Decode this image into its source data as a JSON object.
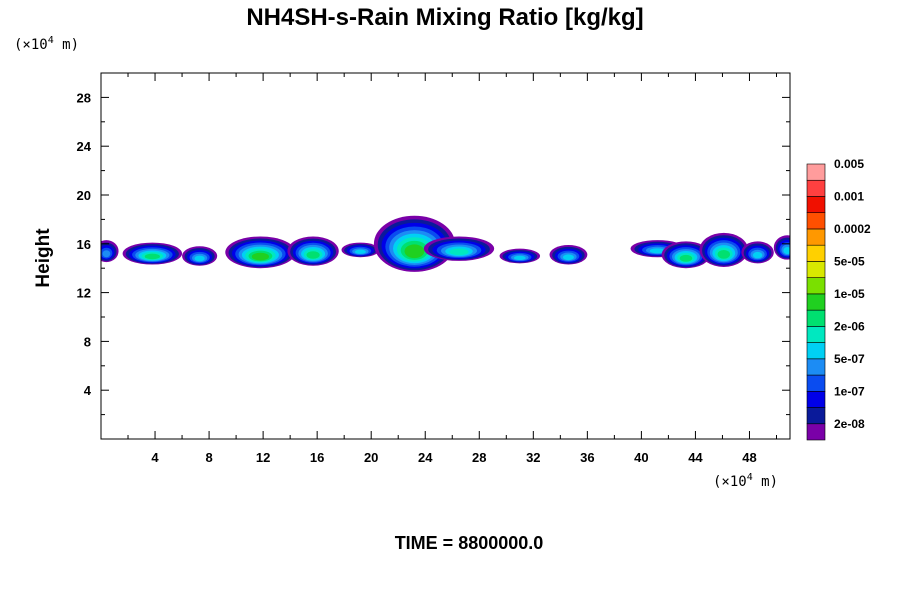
{
  "chart_data": {
    "type": "heatmap",
    "title": "NH4SH-s-Rain Mixing Ratio [kg/kg]",
    "ylabel": "Height",
    "xunit": {
      "prefix": "(×10",
      "exp": "4",
      "suffix": " m)"
    },
    "yunit": {
      "prefix": "(×10",
      "exp": "4",
      "suffix": " m)"
    },
    "xlim": [
      0,
      51
    ],
    "ylim": [
      0,
      30
    ],
    "xticks": [
      4,
      8,
      12,
      16,
      20,
      24,
      28,
      32,
      36,
      40,
      44,
      48
    ],
    "yticks": [
      4,
      8,
      12,
      16,
      20,
      24,
      28
    ],
    "colorbar": {
      "colors": [
        "#7a00a8",
        "#0a1a9a",
        "#0000e8",
        "#0a4cf0",
        "#1c8cf4",
        "#00d0f4",
        "#00e8c0",
        "#00e070",
        "#20d020",
        "#7ae000",
        "#d8e800",
        "#ffd000",
        "#ff9800",
        "#ff5000",
        "#f01000",
        "#ff4040",
        "#ff9c9c"
      ],
      "labels": [
        "2e-08",
        "1e-07",
        "5e-07",
        "2e-06",
        "1e-05",
        "5e-05",
        "0.0002",
        "0.001",
        "0.005"
      ]
    },
    "cells": [
      {
        "x": 0.4,
        "y": 15.4,
        "rx": 0.9,
        "ry": 0.9,
        "peak": 4
      },
      {
        "x": 3.8,
        "y": 15.2,
        "rx": 2.2,
        "ry": 0.9,
        "peak": 7
      },
      {
        "x": 7.3,
        "y": 15.0,
        "rx": 1.3,
        "ry": 0.8,
        "peak": 5
      },
      {
        "x": 11.8,
        "y": 15.3,
        "rx": 2.6,
        "ry": 1.3,
        "peak": 8
      },
      {
        "x": 15.7,
        "y": 15.4,
        "rx": 1.9,
        "ry": 1.2,
        "peak": 7
      },
      {
        "x": 19.2,
        "y": 15.5,
        "rx": 1.4,
        "ry": 0.6,
        "peak": 5
      },
      {
        "x": 23.2,
        "y": 16.0,
        "rx": 3.0,
        "ry": 2.3,
        "peak": 8
      },
      {
        "x": 26.5,
        "y": 15.6,
        "rx": 2.6,
        "ry": 1.0,
        "peak": 6
      },
      {
        "x": 31.0,
        "y": 15.0,
        "rx": 1.5,
        "ry": 0.6,
        "peak": 5
      },
      {
        "x": 34.6,
        "y": 15.1,
        "rx": 1.4,
        "ry": 0.8,
        "peak": 5
      },
      {
        "x": 41.2,
        "y": 15.6,
        "rx": 2.0,
        "ry": 0.7,
        "peak": 5
      },
      {
        "x": 43.3,
        "y": 15.1,
        "rx": 1.8,
        "ry": 1.1,
        "peak": 7
      },
      {
        "x": 46.1,
        "y": 15.5,
        "rx": 1.8,
        "ry": 1.4,
        "peak": 7
      },
      {
        "x": 48.6,
        "y": 15.3,
        "rx": 1.2,
        "ry": 0.9,
        "peak": 5
      },
      {
        "x": 50.8,
        "y": 15.7,
        "rx": 1.0,
        "ry": 1.0,
        "peak": 5
      }
    ]
  },
  "time_label": "TIME = 8800000.0"
}
